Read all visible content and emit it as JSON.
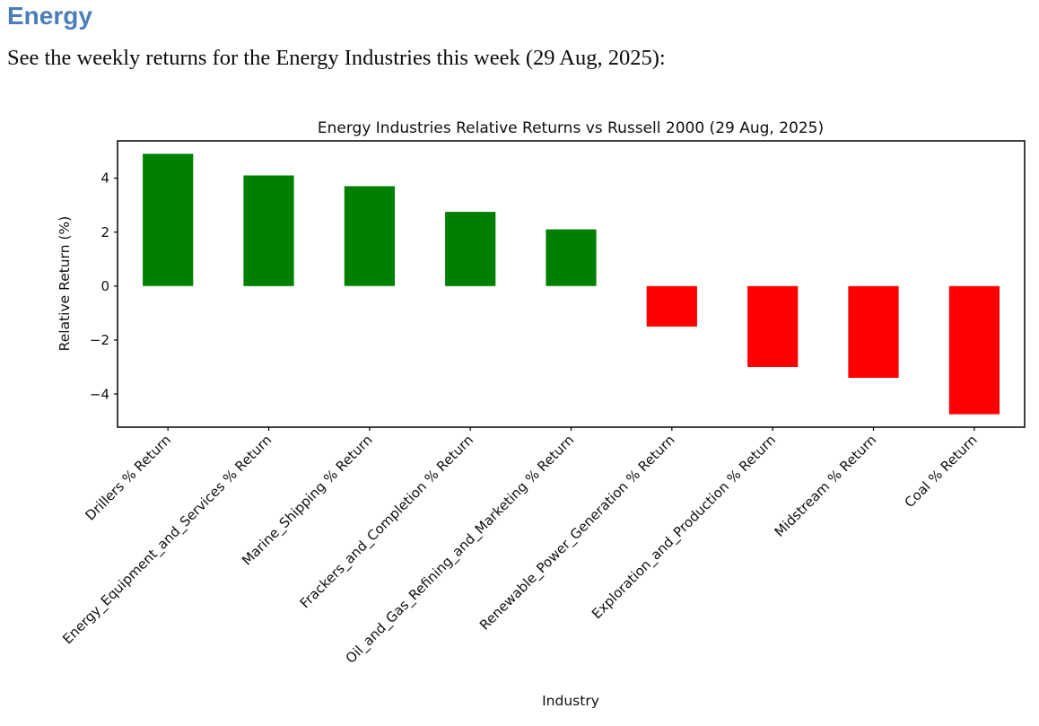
{
  "page": {
    "heading": "Energy",
    "intro": "See the weekly returns for the Energy Industries this week (29 Aug, 2025):"
  },
  "chart_data": {
    "type": "bar",
    "title": "Energy Industries Relative Returns vs Russell 2000 (29 Aug, 2025)",
    "xlabel": "Industry",
    "ylabel": "Relative Return (%)",
    "categories": [
      "Drillers % Return",
      "Energy_Equipment_and_Services % Return",
      "Marine_Shipping % Return",
      "Frackers_and_Completion % Return",
      "Oil_and_Gas_Refining_and_Marketing % Return",
      "Renewable_Power_Generation % Return",
      "Exploration_and_Production % Return",
      "Midstream % Return",
      "Coal % Return"
    ],
    "values": [
      4.9,
      4.1,
      3.7,
      2.75,
      2.1,
      -1.5,
      -3.0,
      -3.4,
      -4.75
    ],
    "positive_color": "#008000",
    "negative_color": "#ff0000",
    "ylim": [
      -5.23,
      5.38
    ],
    "yticks": [
      -4,
      -2,
      0,
      2,
      4
    ],
    "bar_width_fraction": 0.5,
    "grid": false,
    "legend_position": "none",
    "tick_label_rotation_deg": 45
  }
}
